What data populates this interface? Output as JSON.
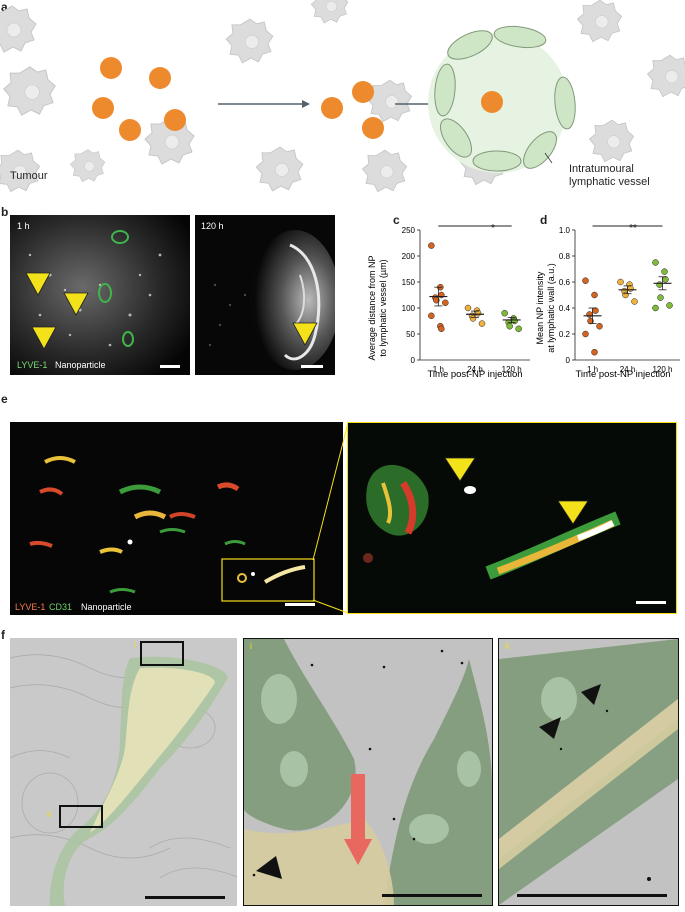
{
  "figure": {
    "panel_labels": [
      "a",
      "b",
      "c",
      "d",
      "e",
      "f"
    ],
    "panel_a": {
      "tumour_label": "Tumour",
      "vessel_label_line1": "Intratumoural",
      "vessel_label_line2": "lymphatic vessel"
    },
    "panel_b": {
      "time_left": "1 h",
      "time_right": "120 h",
      "legend_lyve": "LYVE-1",
      "legend_np": "Nanoparticle"
    },
    "panel_e": {
      "legend_lyve": "LYVE-1",
      "legend_cd31": "CD31",
      "legend_np": "Nanoparticle"
    },
    "panel_f": {
      "roi_i": "i",
      "roi_ii": "ii"
    }
  },
  "colors": {
    "np_orange": "#ee8a2e",
    "tumour_grey": "#d9d9d9",
    "lymph_green": "#cfe6c6",
    "zoom_yellow": "#f2df1a",
    "arrow_red": "#e8685f",
    "time_1h": "#d4641f",
    "time_24h": "#f0b23a",
    "time_120h": "#7dbb38"
  },
  "chart_data": [
    {
      "type": "scatter",
      "panel": "c",
      "ylabel_line1": "Average distance from NP",
      "ylabel_line2": "to lymphatic vessel (µm)",
      "xlabel": "Time post-NP injection",
      "categories": [
        "1 h",
        "24 h",
        "120 h"
      ],
      "yticks": [
        "0",
        "50",
        "100",
        "150",
        "200",
        "250"
      ],
      "ylim": [
        0,
        250
      ],
      "significance": "*",
      "series": [
        {
          "values": [
            220,
            140,
            125,
            120,
            115,
            110,
            85,
            65,
            60
          ]
        },
        {
          "values": [
            100,
            95,
            90,
            85,
            80,
            70
          ]
        },
        {
          "values": [
            90,
            80,
            75,
            72,
            65,
            60
          ]
        }
      ],
      "means": [
        122,
        88,
        77
      ],
      "sem": [
        18,
        6,
        5
      ]
    },
    {
      "type": "scatter",
      "panel": "d",
      "ylabel_line1": "Mean NP intensity",
      "ylabel_line2": "at lymphatic wall (a.u.)",
      "xlabel": "Time post-NP injection",
      "categories": [
        "1 h",
        "24 h",
        "120 h"
      ],
      "yticks": [
        "0",
        "0.2",
        "0.4",
        "0.6",
        "0.8",
        "1.0"
      ],
      "ylim": [
        0,
        1.0
      ],
      "significance": "**",
      "series": [
        {
          "values": [
            0.61,
            0.5,
            0.38,
            0.35,
            0.3,
            0.26,
            0.2,
            0.06
          ]
        },
        {
          "values": [
            0.6,
            0.58,
            0.55,
            0.53,
            0.5,
            0.45
          ]
        },
        {
          "values": [
            0.75,
            0.68,
            0.62,
            0.58,
            0.48,
            0.42,
            0.4
          ]
        }
      ],
      "means": [
        0.34,
        0.54,
        0.59
      ],
      "sem": [
        0.06,
        0.03,
        0.05
      ]
    }
  ]
}
